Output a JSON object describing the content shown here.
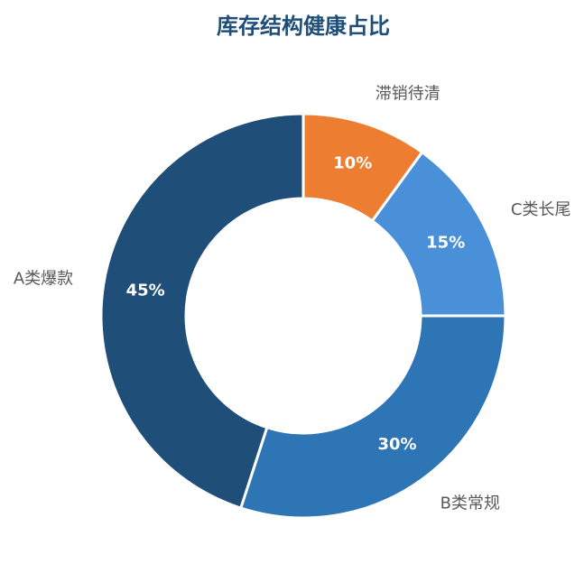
{
  "chart_data": {
    "type": "donut",
    "title": "库存结构健康占比",
    "categories": [
      "滞销待清",
      "C类长尾",
      "B类常规",
      "A类爆款"
    ],
    "values": [
      10,
      15,
      30,
      45
    ],
    "value_labels": [
      "10%",
      "15%",
      "30%",
      "45%"
    ],
    "colors": [
      "#ED7D31",
      "#4A90D9",
      "#2E75B6",
      "#1F4E79"
    ]
  }
}
